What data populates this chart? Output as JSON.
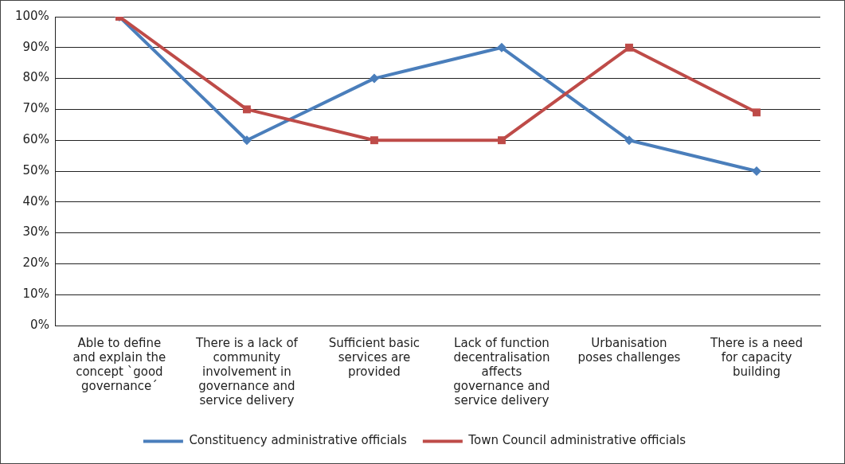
{
  "chart_data": {
    "type": "line",
    "categories": [
      "Able to define and explain the concept `good governance´",
      "There is a lack of community involvement in governance and service delivery",
      "Sufficient basic services are provided",
      "Lack of function decentralisation affects governance and service delivery",
      "Urbanisation poses challenges",
      "There is a need for capacity building"
    ],
    "series": [
      {
        "name": "Constituency administrative officials",
        "color": "#4a7ebb",
        "marker": "diamond",
        "values": [
          100,
          60,
          80,
          90,
          60,
          50
        ]
      },
      {
        "name": "Town Council administrative officials",
        "color": "#be4b48",
        "marker": "square",
        "values": [
          100,
          70,
          60,
          60,
          90,
          69
        ]
      }
    ],
    "ylim": [
      0,
      100
    ],
    "yticks": [
      {
        "value": 0,
        "label": "0%"
      },
      {
        "value": 10,
        "label": "10%"
      },
      {
        "value": 20,
        "label": "20%"
      },
      {
        "value": 30,
        "label": "30%"
      },
      {
        "value": 40,
        "label": "40%"
      },
      {
        "value": 50,
        "label": "50%"
      },
      {
        "value": 60,
        "label": "60%"
      },
      {
        "value": 70,
        "label": "70%"
      },
      {
        "value": 80,
        "label": "80%"
      },
      {
        "value": 90,
        "label": "90%"
      },
      {
        "value": 100,
        "label": "100%"
      }
    ],
    "grid": "y",
    "legend": "bottom",
    "line_style": "solid"
  }
}
